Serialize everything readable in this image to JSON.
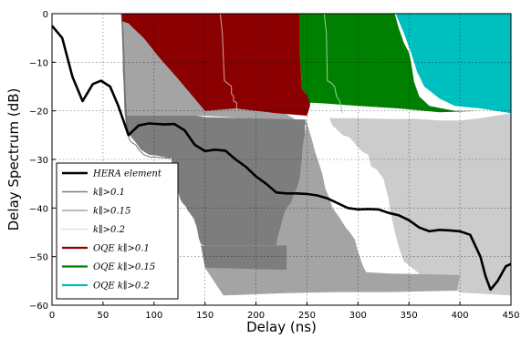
{
  "chart_data": {
    "type": "line",
    "title": "",
    "xlabel": "Delay (ns)",
    "ylabel": "Delay Spectrum (dB)",
    "xlim": [
      0,
      450
    ],
    "ylim": [
      -60,
      0
    ],
    "xticks": [
      0,
      50,
      100,
      150,
      200,
      250,
      300,
      350,
      400,
      450
    ],
    "yticks": [
      0,
      -10,
      -20,
      -30,
      -40,
      -50,
      -60
    ],
    "grid": true,
    "legend_position": "lower-left",
    "series": [
      {
        "name": "HERA element",
        "role": "line",
        "color": "#000000",
        "points": [
          [
            0,
            -2.5
          ],
          [
            10,
            -5
          ],
          [
            20,
            -13
          ],
          [
            30,
            -18
          ],
          [
            40,
            -14.5
          ],
          [
            48,
            -13.8
          ],
          [
            57,
            -15
          ],
          [
            65,
            -19
          ],
          [
            75,
            -25
          ],
          [
            85,
            -23
          ],
          [
            95,
            -22.6
          ],
          [
            110,
            -22.8
          ],
          [
            120,
            -22.7
          ],
          [
            130,
            -24
          ],
          [
            140,
            -27
          ],
          [
            150,
            -28.3
          ],
          [
            160,
            -28
          ],
          [
            170,
            -28.2
          ],
          [
            180,
            -30
          ],
          [
            190,
            -31.5
          ],
          [
            200,
            -33.5
          ],
          [
            210,
            -35
          ],
          [
            220,
            -36.8
          ],
          [
            230,
            -37
          ],
          [
            240,
            -37
          ],
          [
            250,
            -37.1
          ],
          [
            260,
            -37.4
          ],
          [
            270,
            -38
          ],
          [
            280,
            -39
          ],
          [
            290,
            -40
          ],
          [
            300,
            -40.3
          ],
          [
            310,
            -40.2
          ],
          [
            320,
            -40.3
          ],
          [
            330,
            -41
          ],
          [
            340,
            -41.5
          ],
          [
            350,
            -42.5
          ],
          [
            360,
            -44
          ],
          [
            370,
            -44.8
          ],
          [
            380,
            -44.5
          ],
          [
            390,
            -44.6
          ],
          [
            400,
            -44.8
          ],
          [
            410,
            -45.5
          ],
          [
            420,
            -50
          ],
          [
            425,
            -54
          ],
          [
            430,
            -56.8
          ],
          [
            437,
            -55
          ],
          [
            445,
            -52
          ],
          [
            450,
            -51.5
          ]
        ]
      },
      {
        "name": "k∥>0.1",
        "role": "band",
        "color": "#7d7d7d",
        "upper": [
          [
            68,
            -1.5
          ],
          [
            68,
            -4
          ],
          [
            70,
            -13
          ],
          [
            72,
            -18
          ],
          [
            74,
            -21
          ],
          [
            78,
            -24
          ],
          [
            82,
            -26
          ],
          [
            87,
            -28
          ],
          [
            95,
            -29
          ],
          [
            105,
            -29.5
          ],
          [
            117,
            -29.7
          ],
          [
            117,
            -32
          ],
          [
            119,
            -33
          ],
          [
            121,
            -35
          ],
          [
            123,
            -37
          ],
          [
            125,
            -38.3
          ],
          [
            127,
            -39
          ],
          [
            130,
            -39.5
          ],
          [
            132,
            -40.3
          ],
          [
            135,
            -41.3
          ],
          [
            139,
            -42.2
          ],
          [
            143,
            -44
          ],
          [
            145,
            -46.3
          ],
          [
            146,
            -47.5
          ]
        ],
        "lower": [
          [
            68,
            -1.5
          ],
          [
            150,
            -47.7
          ]
        ]
      },
      {
        "name": "k∥>0.15",
        "role": "band",
        "color": "#a4a4a4",
        "upper": [
          [
            70,
            -2
          ],
          [
            70,
            -3
          ],
          [
            75,
            -21
          ],
          [
            120,
            -21.5
          ],
          [
            160,
            -21
          ],
          [
            200,
            -21.7
          ],
          [
            225,
            -21.6
          ],
          [
            250,
            -21.8
          ]
        ],
        "lower": [
          [
            250,
            -21.8
          ],
          [
            249,
            -23
          ],
          [
            248,
            -25
          ],
          [
            246,
            -27
          ],
          [
            245,
            -30
          ],
          [
            244,
            -32
          ],
          [
            243,
            -34
          ],
          [
            240,
            -36
          ],
          [
            237,
            -37.5
          ],
          [
            234,
            -39
          ],
          [
            230,
            -40
          ],
          [
            228,
            -41
          ],
          [
            226,
            -42.5
          ],
          [
            224,
            -44
          ],
          [
            222,
            -45.5
          ],
          [
            220,
            -47.7
          ],
          [
            150,
            -47.7
          ],
          [
            150,
            -50
          ],
          [
            150,
            -52.3
          ],
          [
            230,
            -53
          ],
          [
            310,
            -53.3
          ],
          [
            345,
            -53.5
          ],
          [
            400,
            -53.7
          ],
          [
            397,
            -57
          ],
          [
            332,
            -57.3
          ],
          [
            280,
            -57
          ],
          [
            225,
            -57.5
          ],
          [
            166,
            -58
          ]
        ]
      },
      {
        "name": "k∥>0.2",
        "role": "band",
        "color": "#cccccc",
        "upper": [
          [
            355,
            -21.6
          ],
          [
            380,
            -22
          ],
          [
            400,
            -22
          ],
          [
            420,
            -21.5
          ],
          [
            450,
            -20.5
          ]
        ],
        "lower": [
          [
            450,
            -58
          ],
          [
            400,
            -57.4
          ]
        ]
      },
      {
        "name": "OQE k∥>0.1",
        "role": "band",
        "color": "#8b0000",
        "points": [
          [
            68,
            0
          ],
          [
            165,
            0
          ],
          [
            243,
            0
          ],
          [
            243,
            -8
          ],
          [
            245,
            -16
          ],
          [
            249,
            -17
          ],
          [
            252,
            -19
          ],
          [
            253,
            -21
          ],
          [
            220,
            -20
          ],
          [
            150,
            -21
          ],
          [
            111,
            -21
          ],
          [
            70,
            -3
          ]
        ]
      },
      {
        "name": "OQE k∥>0.15",
        "role": "band",
        "color": "#008000",
        "points": [
          [
            243,
            0
          ],
          [
            352,
            0
          ],
          [
            352,
            -10
          ],
          [
            355,
            -18
          ],
          [
            360,
            -20
          ],
          [
            366,
            -21
          ],
          [
            395,
            -20.6
          ],
          [
            470,
            -20
          ],
          [
            450,
            -20
          ],
          [
            420,
            -20.1
          ],
          [
            395,
            -20
          ],
          [
            330,
            -19
          ],
          [
            300,
            -18.7
          ],
          [
            270,
            -18.5
          ],
          [
            253,
            -18.3
          ],
          [
            249,
            -17
          ],
          [
            245,
            -16
          ],
          [
            243,
            -8
          ]
        ]
      },
      {
        "name": "OQE k∥>0.2",
        "role": "band",
        "color": "#00bfbf",
        "points": [
          [
            337,
            0
          ],
          [
            450,
            0
          ],
          [
            450,
            -20
          ],
          [
            420,
            -19.5
          ],
          [
            400,
            -19.5
          ],
          [
            380,
            -19
          ],
          [
            360,
            -18
          ],
          [
            352,
            -10
          ],
          [
            352,
            0
          ]
        ]
      }
    ]
  }
}
